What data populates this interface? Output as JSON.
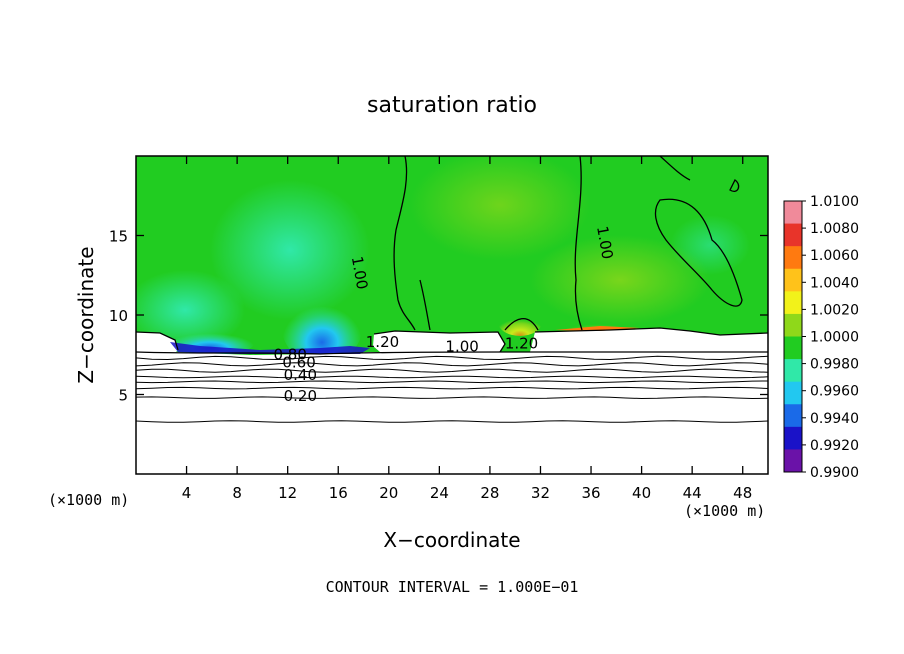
{
  "chart_data": {
    "type": "heatmap",
    "title": "saturation ratio",
    "xlabel": "X−coordinate",
    "ylabel": "Z−coordinate",
    "x_unit_left": "(×1000 m)",
    "x_unit_right": "(×1000 m)",
    "xlim": [
      0,
      50
    ],
    "ylim": [
      0,
      20
    ],
    "x_ticks": [
      4,
      8,
      12,
      16,
      20,
      24,
      28,
      32,
      36,
      40,
      44,
      48
    ],
    "y_ticks": [
      5,
      10,
      15
    ],
    "footer": "CONTOUR INTERVAL = 1.000E−01",
    "colorbar": {
      "levels": [
        "1.0100",
        "1.0080",
        "1.0060",
        "1.0040",
        "1.0020",
        "1.0000",
        "0.9980",
        "0.9960",
        "0.9940",
        "0.9920",
        "0.9900"
      ],
      "colors": [
        "#f08a9a",
        "#e8342a",
        "#ff7a10",
        "#ffc21a",
        "#f2f21a",
        "#8fd81a",
        "#21cc21",
        "#30e8a8",
        "#22c8f0",
        "#1a6ae8",
        "#1a12c8",
        "#6a12a8"
      ]
    },
    "contour_labels": [
      {
        "text": "1.00",
        "x": 17.3,
        "y": 12.6
      },
      {
        "text": "1.00",
        "x": 36.7,
        "y": 14.5
      },
      {
        "text": "1.20",
        "x": 19.5,
        "y": 8.0
      },
      {
        "text": "1.00",
        "x": 25.8,
        "y": 7.7
      },
      {
        "text": "1.20",
        "x": 30.5,
        "y": 7.9
      },
      {
        "text": "0.80",
        "x": 12.2,
        "y": 7.2
      },
      {
        "text": "0.60",
        "x": 12.9,
        "y": 6.7
      },
      {
        "text": "0.40",
        "x": 13.0,
        "y": 5.9
      },
      {
        "text": "0.20",
        "x": 13.0,
        "y": 4.6
      }
    ],
    "contour_levels_z": [
      7.3,
      6.9,
      6.5,
      6.1,
      5.8,
      5.4,
      4.8,
      3.3
    ]
  }
}
